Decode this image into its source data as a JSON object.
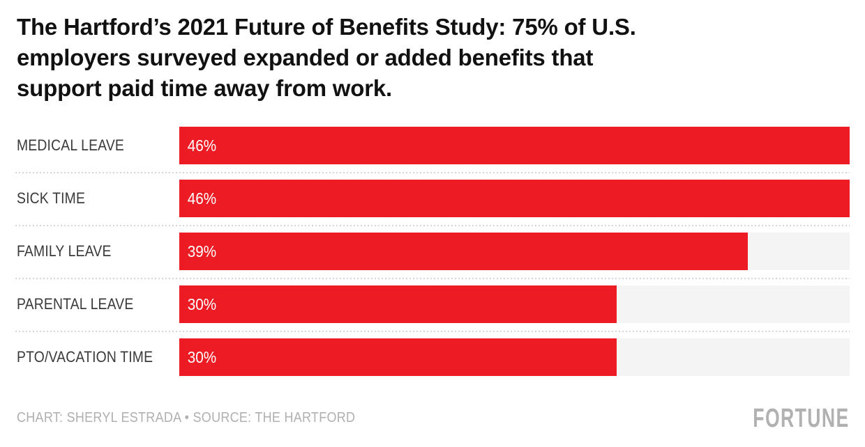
{
  "header": {
    "title": "The Hartford’s 2021 Future of Benefits Study: 75% of U.S.\nemployers surveyed expanded or added benefits that\nsupport paid time away from work."
  },
  "chart_data": {
    "type": "bar",
    "orientation": "horizontal",
    "title": "The Hartford’s 2021 Future of Benefits Study: 75% of U.S. employers surveyed expanded or added benefits that support paid time away from work.",
    "categories": [
      "MEDICAL LEAVE",
      "SICK TIME",
      "FAMILY LEAVE",
      "PARENTAL LEAVE",
      "PTO/VACATION TIME"
    ],
    "values": [
      46,
      46,
      39,
      30,
      30
    ],
    "value_labels": [
      "46%",
      "46%",
      "39%",
      "30%",
      "30%"
    ],
    "unit": "%",
    "xlim": [
      0,
      46
    ],
    "grid": false,
    "legend": false,
    "bar_color": "#ed1c24",
    "track_color": "#f4f4f4",
    "category_label_color": "#3a3a3a",
    "value_label_color": "#ffffff",
    "separator_color": "#d6d6d6"
  },
  "footer": {
    "credit": "CHART: SHERYL ESTRADA • SOURCE: THE HARTFORD",
    "credit_color": "#b0b0b0",
    "logo": "FORTUNE",
    "logo_color": "#b1b1b1"
  }
}
